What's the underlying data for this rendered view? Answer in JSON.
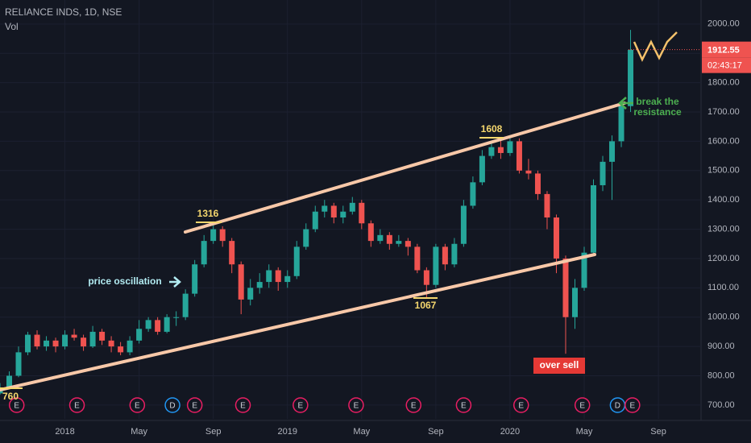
{
  "chart_data": {
    "type": "candlestick",
    "title": "RELIANCE INDS, 1D, NSE",
    "indicator_label": "Vol",
    "up_color": "#26a69a",
    "down_color": "#ef5350",
    "x": [
      -3.5,
      -3,
      -2.5,
      -2,
      -1.5,
      -1,
      -0.5,
      0,
      0.5,
      1,
      1.5,
      2,
      2.5,
      3,
      3.5,
      4,
      4.5,
      5,
      5.5,
      6,
      6.5,
      7,
      7.5,
      8,
      8.5,
      9,
      9.5,
      10,
      10.5,
      11,
      11.5,
      12,
      12.5,
      13,
      13.5,
      14,
      14.5,
      15,
      15.5,
      16,
      16.5,
      17,
      17.5,
      18,
      18.5,
      19,
      19.5,
      20,
      20.5,
      21,
      21.5,
      22,
      22.5,
      23,
      23.5,
      24,
      24.5,
      25,
      25.5,
      26,
      26.5,
      27,
      27.5,
      28,
      28.5,
      29,
      29.5,
      30,
      30.5
    ],
    "open": [
      740,
      760,
      800,
      880,
      940,
      900,
      920,
      900,
      940,
      930,
      900,
      950,
      920,
      900,
      880,
      920,
      960,
      990,
      950,
      1000,
      1000,
      1080,
      1180,
      1260,
      1300,
      1260,
      1180,
      1060,
      1100,
      1120,
      1160,
      1120,
      1140,
      1240,
      1300,
      1360,
      1380,
      1340,
      1360,
      1390,
      1320,
      1260,
      1280,
      1250,
      1260,
      1240,
      1160,
      1110,
      1240,
      1180,
      1250,
      1380,
      1460,
      1550,
      1580,
      1560,
      1600,
      1500,
      1490,
      1420,
      1340,
      1200,
      1000,
      1100,
      1220,
      1450,
      1530,
      1600,
      1720
    ],
    "high": [
      775,
      815,
      900,
      950,
      955,
      935,
      930,
      955,
      960,
      940,
      970,
      960,
      935,
      915,
      935,
      990,
      1000,
      1000,
      1010,
      1020,
      1095,
      1195,
      1280,
      1316,
      1310,
      1270,
      1190,
      1130,
      1150,
      1180,
      1170,
      1160,
      1260,
      1320,
      1380,
      1400,
      1390,
      1380,
      1410,
      1400,
      1330,
      1300,
      1290,
      1280,
      1270,
      1250,
      1170,
      1250,
      1250,
      1270,
      1400,
      1480,
      1570,
      1600,
      1608,
      1610,
      1610,
      1540,
      1500,
      1430,
      1350,
      1210,
      1130,
      1240,
      1470,
      1550,
      1620,
      1740,
      1980
    ],
    "low": [
      735,
      755,
      795,
      870,
      890,
      885,
      880,
      890,
      920,
      885,
      895,
      905,
      880,
      870,
      870,
      910,
      950,
      940,
      945,
      970,
      990,
      1070,
      1170,
      1250,
      1240,
      1150,
      1010,
      1040,
      1080,
      1100,
      1090,
      1100,
      1130,
      1230,
      1290,
      1340,
      1320,
      1320,
      1350,
      1300,
      1240,
      1250,
      1230,
      1240,
      1210,
      1150,
      1067,
      1100,
      1160,
      1170,
      1240,
      1370,
      1450,
      1540,
      1540,
      1550,
      1490,
      1470,
      1400,
      1300,
      1150,
      875,
      960,
      1090,
      1210,
      1430,
      1400,
      1580,
      1700
    ],
    "close": [
      760,
      800,
      880,
      940,
      900,
      920,
      900,
      940,
      930,
      900,
      950,
      920,
      900,
      880,
      920,
      960,
      990,
      950,
      1000,
      1000,
      1080,
      1180,
      1260,
      1300,
      1260,
      1180,
      1060,
      1100,
      1120,
      1160,
      1120,
      1140,
      1240,
      1300,
      1360,
      1380,
      1340,
      1360,
      1390,
      1320,
      1260,
      1280,
      1250,
      1260,
      1240,
      1160,
      1110,
      1240,
      1180,
      1250,
      1380,
      1460,
      1550,
      1580,
      1560,
      1600,
      1500,
      1490,
      1420,
      1340,
      1200,
      1000,
      1100,
      1220,
      1450,
      1530,
      1600,
      1720,
      1912
    ],
    "xlim": [
      -3.5,
      34.3
    ],
    "xticks": [
      {
        "value": 0,
        "label": "2018"
      },
      {
        "value": 4,
        "label": "May"
      },
      {
        "value": 8,
        "label": "Sep"
      },
      {
        "value": 12,
        "label": "2019"
      },
      {
        "value": 16,
        "label": "May"
      },
      {
        "value": 20,
        "label": "Sep"
      },
      {
        "value": 24,
        "label": "2020"
      },
      {
        "value": 28,
        "label": "May"
      },
      {
        "value": 32,
        "label": "Sep"
      }
    ],
    "ylim": [
      653,
      2082
    ],
    "yticks": [
      {
        "value": 700,
        "label": "700.00"
      },
      {
        "value": 800,
        "label": "800.00"
      },
      {
        "value": 900,
        "label": "900.00"
      },
      {
        "value": 1000,
        "label": "1000.00"
      },
      {
        "value": 1100,
        "label": "1100.00"
      },
      {
        "value": 1200,
        "label": "1200.00"
      },
      {
        "value": 1300,
        "label": "1300.00"
      },
      {
        "value": 1400,
        "label": "1400.00"
      },
      {
        "value": 1500,
        "label": "1500.00"
      },
      {
        "value": 1600,
        "label": "1600.00"
      },
      {
        "value": 1700,
        "label": "1700.00"
      },
      {
        "value": 1800,
        "label": "1800.00"
      },
      {
        "value": 1900,
        "label": "1900.00"
      },
      {
        "value": 2000,
        "label": "2000.00"
      }
    ],
    "grid": true,
    "last_price": 1912.55,
    "countdown": "02:43:17",
    "level_labels": [
      760,
      1316,
      1067,
      1608
    ],
    "notes": [
      "price oscillation",
      "over sell",
      "break the",
      "resistance"
    ],
    "events": [
      {
        "x": -2.6,
        "label": "E"
      },
      {
        "x": 0.65,
        "label": "E"
      },
      {
        "x": 3.9,
        "label": "E"
      },
      {
        "x": 5.8,
        "label": "D"
      },
      {
        "x": 7,
        "label": "E"
      },
      {
        "x": 9.6,
        "label": "E"
      },
      {
        "x": 12.7,
        "label": "E"
      },
      {
        "x": 15.7,
        "label": "E"
      },
      {
        "x": 18.8,
        "label": "E"
      },
      {
        "x": 21.5,
        "label": "E"
      },
      {
        "x": 24.6,
        "label": "E"
      },
      {
        "x": 27.9,
        "label": "E"
      },
      {
        "x": 29.8,
        "label": "D"
      },
      {
        "x": 30.6,
        "label": "E"
      }
    ]
  }
}
